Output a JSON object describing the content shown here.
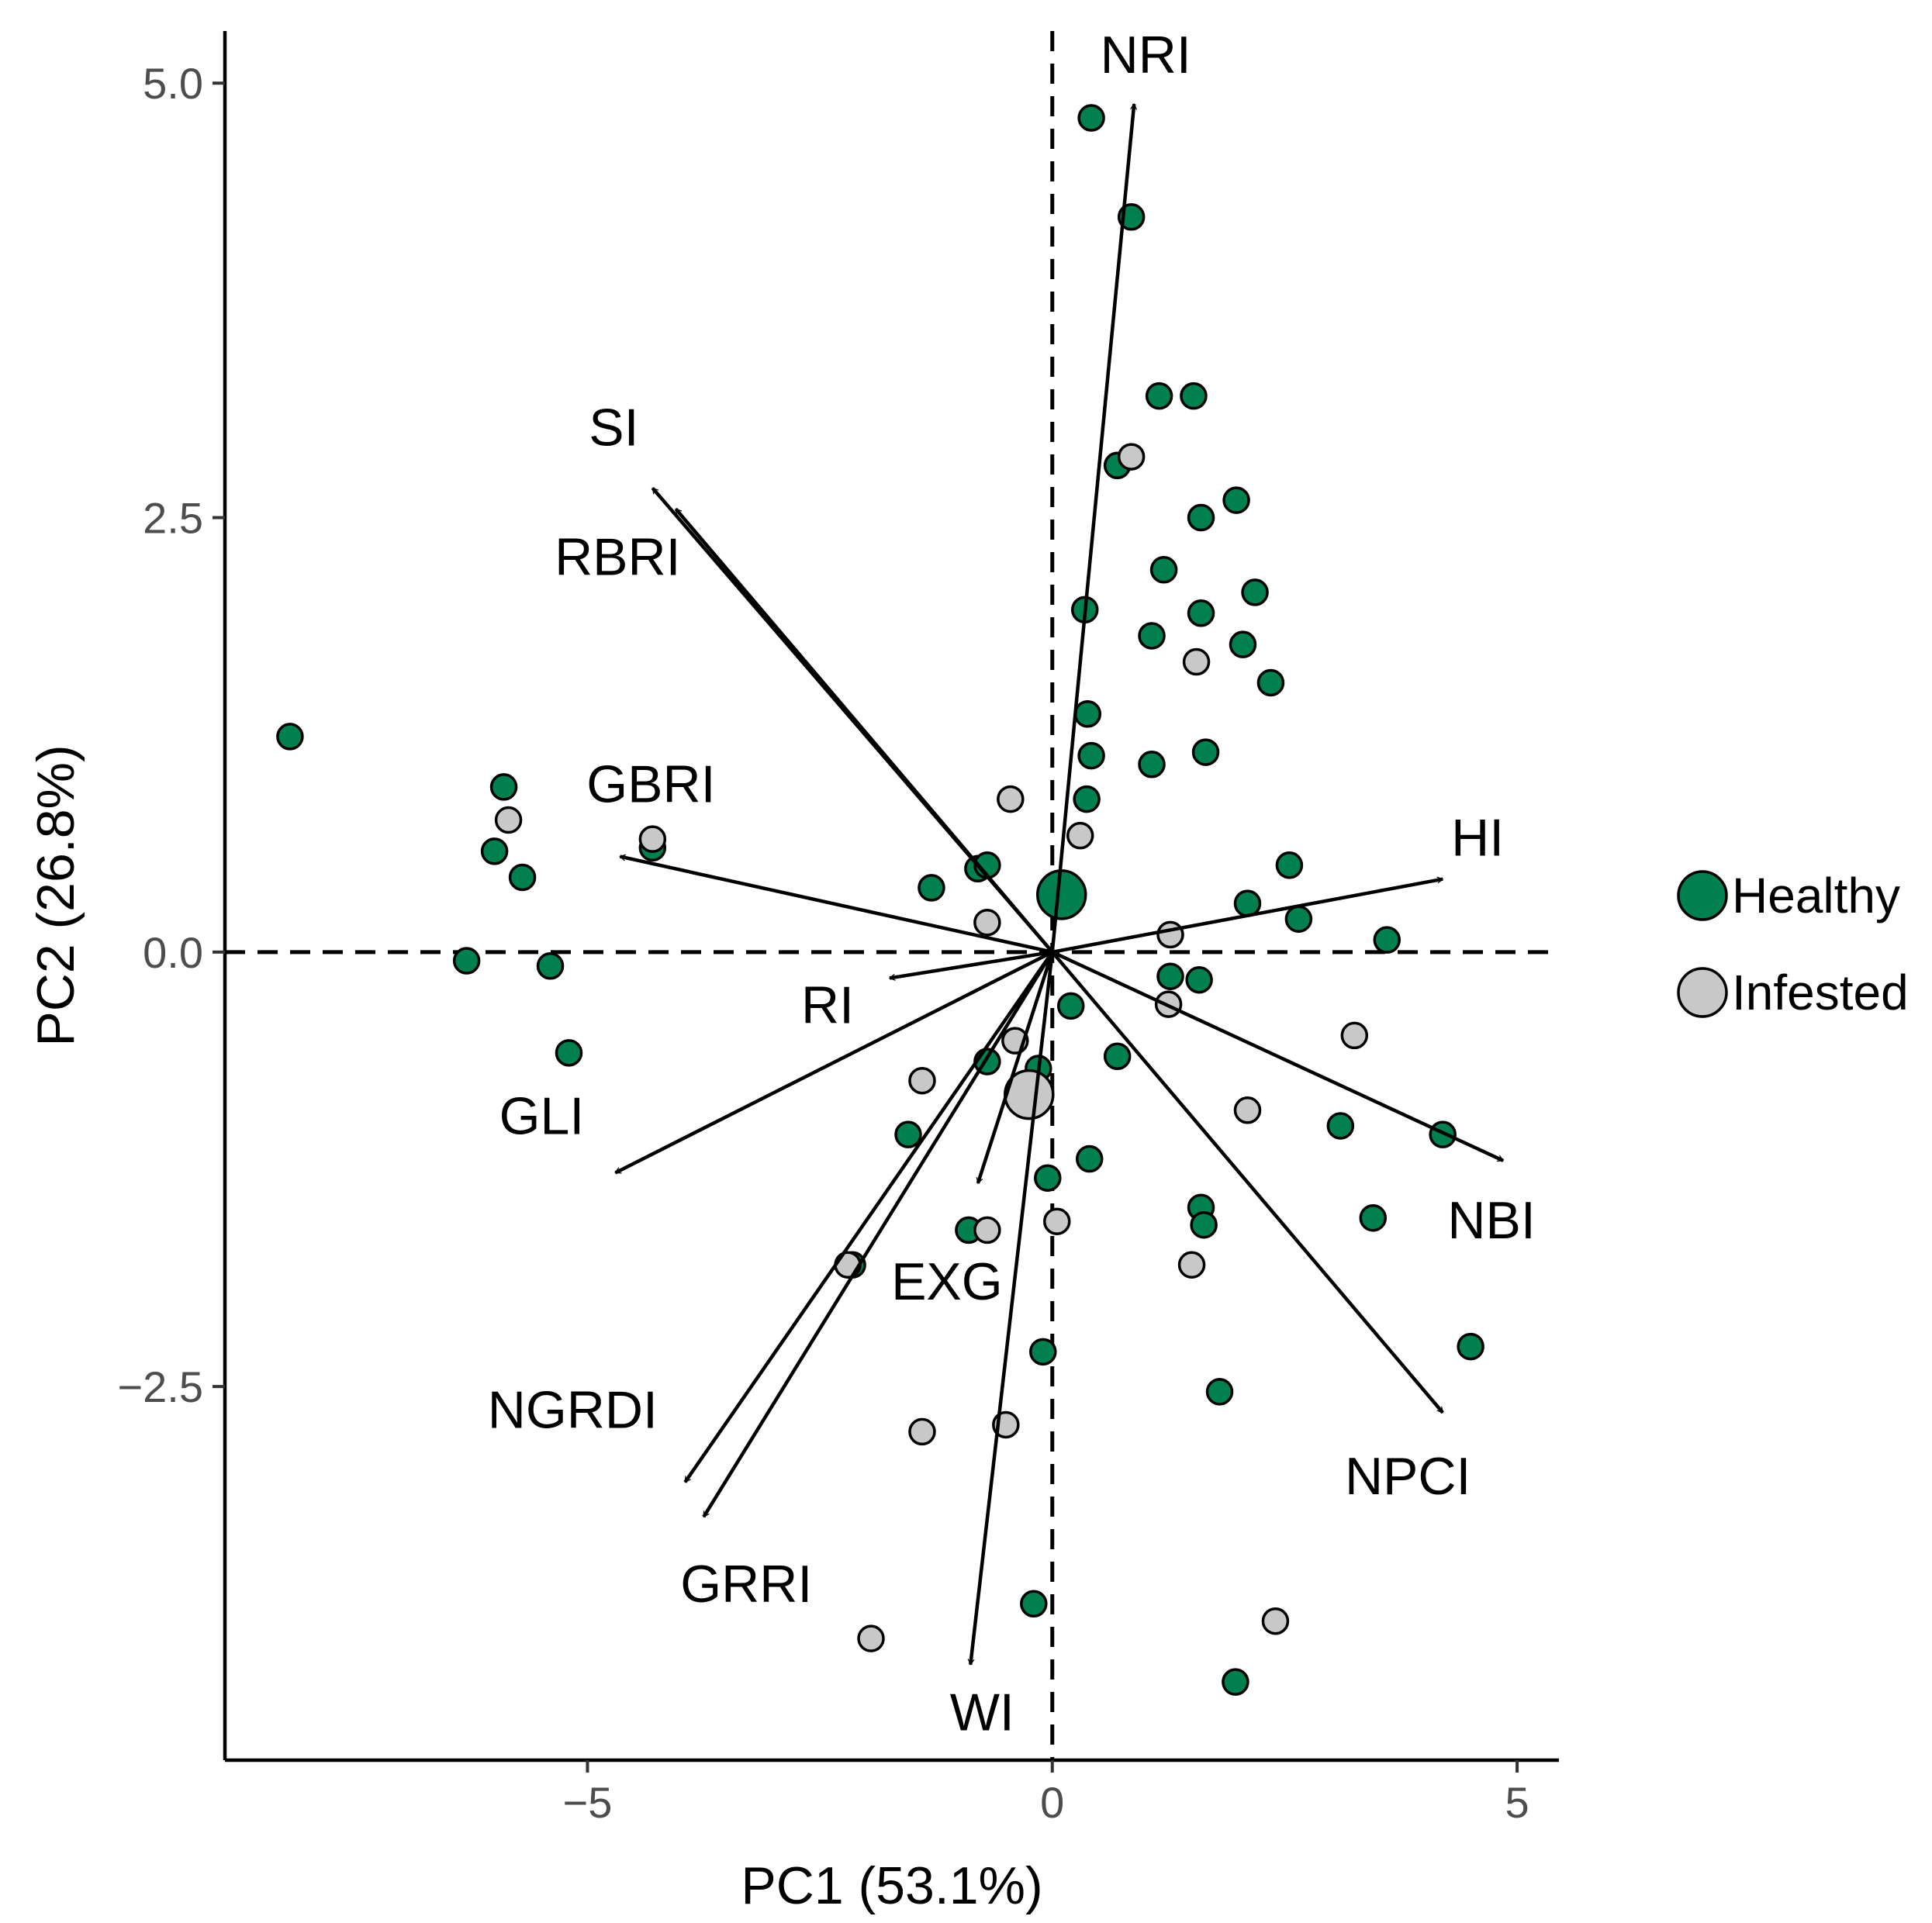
{
  "chart_data": {
    "type": "scatter",
    "subtype": "pca-biplot",
    "xlabel": "PC1 (53.1%)",
    "ylabel": "PC2 (26.8%)",
    "xlim": [
      -8.9,
      5.45
    ],
    "ylim": [
      -4.65,
      5.3
    ],
    "xticks": [
      -5,
      0,
      5
    ],
    "xtick_labels": [
      "−5",
      "0",
      "5"
    ],
    "yticks": [
      -2.5,
      0.0,
      2.5,
      5.0
    ],
    "ytick_labels": [
      "−2.5",
      "0.0",
      "2.5",
      "5.0"
    ],
    "grid": false,
    "reference_lines": {
      "x": 0,
      "y": 0,
      "style": "dashed"
    },
    "legend": {
      "position": "right",
      "entries": [
        {
          "label": "Healthy",
          "color": "#00804F"
        },
        {
          "label": "Infested",
          "color": "#C8C8C8"
        }
      ]
    },
    "series": [
      {
        "name": "Healthy",
        "color": "#00804F",
        "points": [
          [
            -8.2,
            1.24
          ],
          [
            -5.9,
            0.95
          ],
          [
            -6.0,
            0.58
          ],
          [
            -5.7,
            0.43
          ],
          [
            -6.3,
            -0.05
          ],
          [
            -5.4,
            -0.08
          ],
          [
            -5.2,
            -0.58
          ],
          [
            -4.3,
            0.6
          ],
          [
            -1.3,
            0.37
          ],
          [
            -0.8,
            0.48
          ],
          [
            -0.7,
            0.5
          ],
          [
            -0.7,
            -0.63
          ],
          [
            -1.55,
            -1.05
          ],
          [
            -0.9,
            -1.6
          ],
          [
            -2.15,
            -1.8
          ],
          [
            -0.15,
            -0.67
          ],
          [
            -0.05,
            -1.3
          ],
          [
            -0.1,
            -2.3
          ],
          [
            -0.2,
            -3.75
          ],
          [
            0.2,
            -0.31
          ],
          [
            0.7,
            -0.6
          ],
          [
            0.4,
            -1.19
          ],
          [
            0.42,
            4.8
          ],
          [
            0.85,
            4.23
          ],
          [
            1.15,
            3.2
          ],
          [
            1.52,
            3.2
          ],
          [
            0.7,
            2.8
          ],
          [
            1.6,
            2.5
          ],
          [
            1.98,
            2.6
          ],
          [
            1.2,
            2.2
          ],
          [
            0.35,
            1.97
          ],
          [
            1.07,
            1.82
          ],
          [
            1.6,
            1.95
          ],
          [
            2.18,
            2.07
          ],
          [
            2.05,
            1.77
          ],
          [
            2.35,
            1.55
          ],
          [
            0.38,
            1.37
          ],
          [
            0.42,
            1.13
          ],
          [
            1.07,
            1.08
          ],
          [
            1.65,
            1.15
          ],
          [
            0.37,
            0.88
          ],
          [
            2.55,
            0.5
          ],
          [
            2.1,
            0.28
          ],
          [
            2.65,
            0.19
          ],
          [
            3.6,
            0.07
          ],
          [
            1.27,
            -0.14
          ],
          [
            1.58,
            -0.16
          ],
          [
            3.1,
            -1.0
          ],
          [
            4.2,
            -1.05
          ],
          [
            1.6,
            -1.47
          ],
          [
            1.63,
            -1.57
          ],
          [
            3.45,
            -1.53
          ],
          [
            4.5,
            -2.27
          ],
          [
            1.8,
            -2.53
          ],
          [
            1.97,
            -4.2
          ]
        ]
      },
      {
        "name": "Infested",
        "color": "#C8C8C8",
        "points": [
          [
            -5.85,
            0.76
          ],
          [
            -4.3,
            0.65
          ],
          [
            -0.45,
            0.88
          ],
          [
            -0.7,
            0.17
          ],
          [
            -1.4,
            -0.74
          ],
          [
            -0.4,
            -0.51
          ],
          [
            -0.7,
            -1.6
          ],
          [
            -0.5,
            -2.72
          ],
          [
            -1.4,
            -2.76
          ],
          [
            -2.2,
            -1.8
          ],
          [
            -1.95,
            -3.95
          ],
          [
            0.05,
            -1.55
          ],
          [
            0.3,
            0.67
          ],
          [
            0.85,
            2.85
          ],
          [
            1.55,
            1.67
          ],
          [
            1.27,
            0.1
          ],
          [
            1.25,
            -0.3
          ],
          [
            1.5,
            -1.8
          ],
          [
            2.1,
            -0.91
          ],
          [
            3.25,
            -0.48
          ],
          [
            2.4,
            -3.85
          ]
        ]
      }
    ],
    "centroids": [
      {
        "group": "Healthy",
        "x": 0.1,
        "y": 0.33,
        "color": "#00804F"
      },
      {
        "group": "Infested",
        "x": -0.25,
        "y": -0.82,
        "color": "#C8C8C8"
      }
    ],
    "loadings": [
      {
        "name": "NRI",
        "x": 0.88,
        "y": 4.88
      },
      {
        "name": "SI",
        "x": -4.3,
        "y": 2.67
      },
      {
        "name": "RBRI",
        "x": -4.05,
        "y": 2.55
      },
      {
        "name": "GBRI",
        "x": -4.65,
        "y": 0.55
      },
      {
        "name": "HI",
        "x": 4.2,
        "y": 0.42
      },
      {
        "name": "RI",
        "x": -1.75,
        "y": -0.15
      },
      {
        "name": "GLI",
        "x": -4.7,
        "y": -1.27
      },
      {
        "name": "NBI",
        "x": 4.85,
        "y": -1.2
      },
      {
        "name": "NPCI",
        "x": 4.2,
        "y": -2.65
      },
      {
        "name": "EXG",
        "x": -0.8,
        "y": -1.33
      },
      {
        "name": "NGRDI",
        "x": -3.95,
        "y": -3.05
      },
      {
        "name": "GRRI",
        "x": -3.75,
        "y": -3.25
      },
      {
        "name": "WI",
        "x": -0.88,
        "y": -4.1
      }
    ]
  }
}
